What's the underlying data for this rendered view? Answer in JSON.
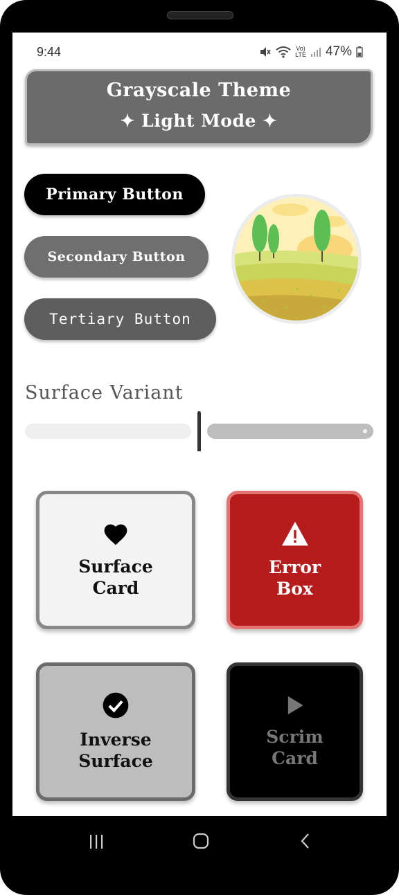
{
  "status_bar": {
    "time": "9:44",
    "battery": "47%",
    "icons": [
      "mute-icon",
      "wifi-icon",
      "volte-icon",
      "signal-icon",
      "battery-icon"
    ],
    "volte_top": "Vo)",
    "volte_bottom": "LTE"
  },
  "header": {
    "title": "Grayscale Theme",
    "subtitle": "✦ Light Mode ✦"
  },
  "buttons": {
    "primary": "Primary Button",
    "secondary": "Secondary Button",
    "tertiary": "Tertiary Button"
  },
  "slider": {
    "label": "Surface Variant",
    "value": 0.5
  },
  "cards": [
    {
      "label_line1": "Surface",
      "label_line2": "Card",
      "icon": "heart-icon"
    },
    {
      "label_line1": "Error",
      "label_line2": "Box",
      "icon": "warning-icon"
    },
    {
      "label_line1": "Inverse",
      "label_line2": "Surface",
      "icon": "check-circle-icon"
    },
    {
      "label_line1": "Scrim",
      "label_line2": "Card",
      "icon": "play-icon"
    }
  ],
  "colors": {
    "primary": "#000000",
    "secondary": "#6f6f6f",
    "tertiary": "#5e5e5e",
    "error": "#b71c1c",
    "surface": "#f3f3f3",
    "inverse_surface": "#bdbdbd"
  },
  "nav": {
    "icons": [
      "recents-icon",
      "home-icon",
      "back-icon"
    ]
  }
}
